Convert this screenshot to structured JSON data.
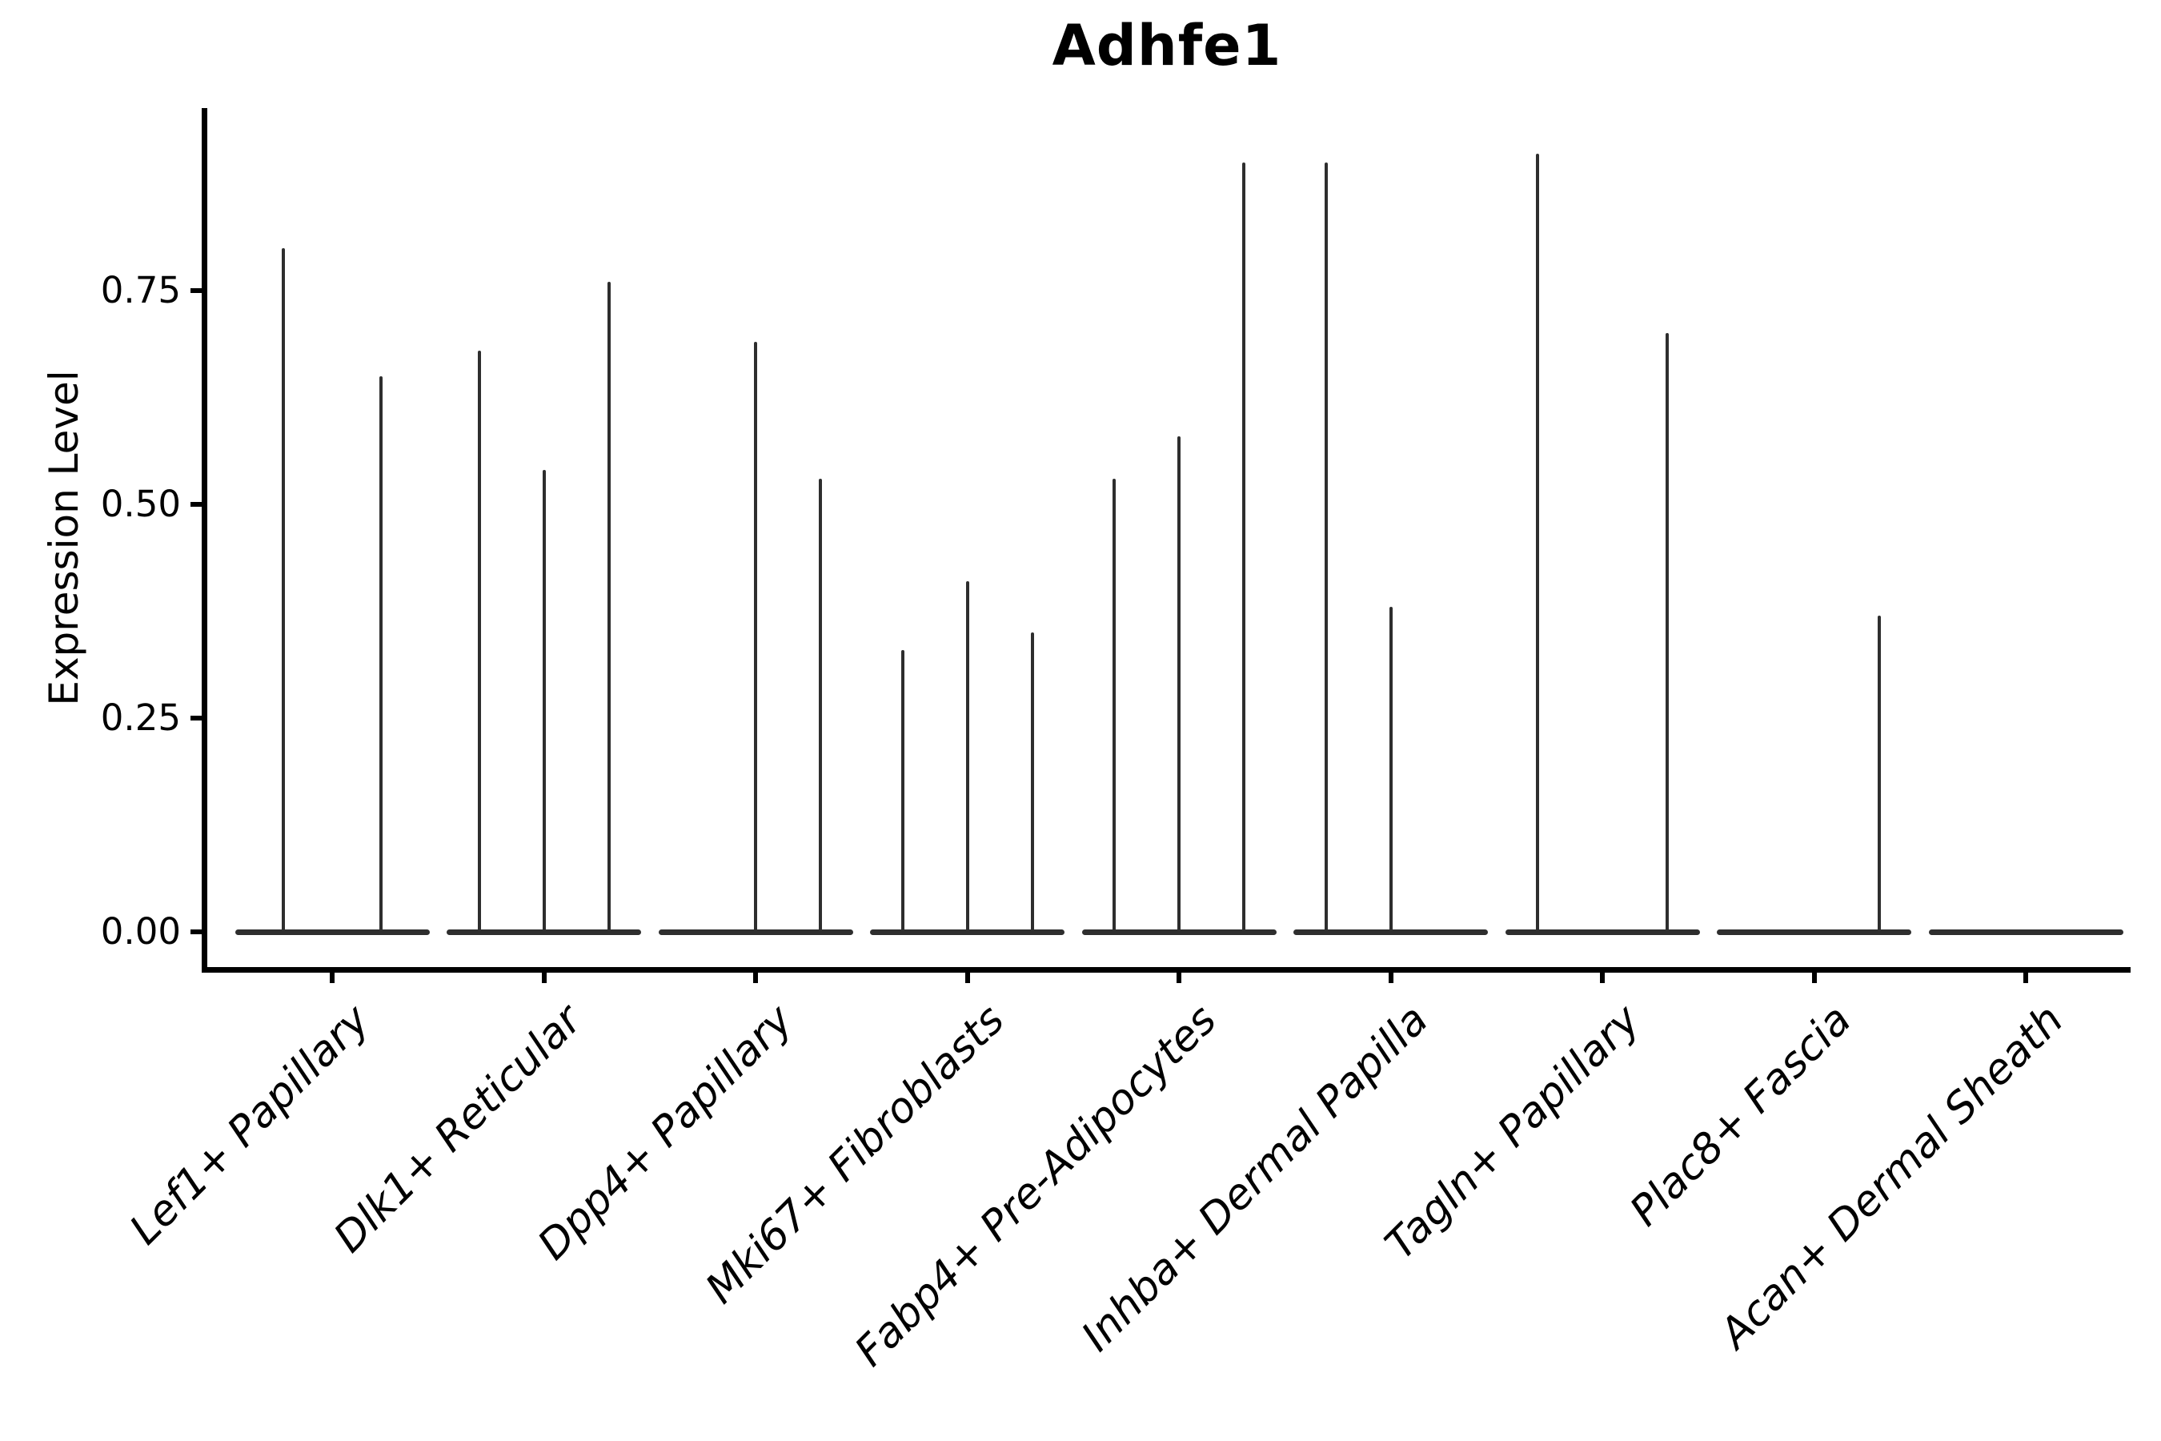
{
  "chart_data": {
    "type": "violin",
    "title": "Adhfe1",
    "ylabel": "Expression Level",
    "xlabel": "",
    "yticks": [
      0.0,
      0.25,
      0.5,
      0.75
    ],
    "ytick_labels": [
      "0.00",
      "0.25",
      "0.50",
      "0.75"
    ],
    "ylim": [
      -0.04,
      0.96
    ],
    "grid": false,
    "legend": "none",
    "style_note": "single-cell expression violin plot; violins collapse to thin vertical spikes with wide flat bases at zero expression",
    "categories": [
      "Lef1+ Papillary",
      "Dlk1+ Reticular",
      "Dpp4+ Papillary",
      "Mki67+ Fibroblasts",
      "Fabp4+ Pre-Adipocytes",
      "Inhba+ Dermal Papilla",
      "Tagln+ Papillary",
      "Plac8+ Fascia",
      "Acan+ Dermal Sheath"
    ],
    "groups": [
      {
        "category": "Lef1+ Papillary",
        "violin_max_expression": [
          0.8,
          0.65
        ]
      },
      {
        "category": "Dlk1+ Reticular",
        "violin_max_expression": [
          0.68,
          0.54,
          0.76
        ]
      },
      {
        "category": "Dpp4+ Papillary",
        "violin_max_expression": [
          0.0,
          0.69,
          0.53
        ]
      },
      {
        "category": "Mki67+ Fibroblasts",
        "violin_max_expression": [
          0.33,
          0.41,
          0.35
        ]
      },
      {
        "category": "Fabp4+ Pre-Adipocytes",
        "violin_max_expression": [
          0.53,
          0.58,
          0.9
        ]
      },
      {
        "category": "Inhba+ Dermal Papilla",
        "violin_max_expression": [
          0.9,
          0.38,
          0.0
        ]
      },
      {
        "category": "Tagln+ Papillary",
        "violin_max_expression": [
          0.91,
          0.0,
          0.7
        ]
      },
      {
        "category": "Plac8+ Fascia",
        "violin_max_expression": [
          0.0,
          0.0,
          0.37
        ]
      },
      {
        "category": "Acan+ Dermal Sheath",
        "violin_max_expression": [
          0.0,
          0.0,
          0.0
        ]
      }
    ],
    "colors": {
      "violin_line": "#2e2e2e",
      "spine": "#000000",
      "text": "#000000",
      "background": "#ffffff"
    }
  }
}
